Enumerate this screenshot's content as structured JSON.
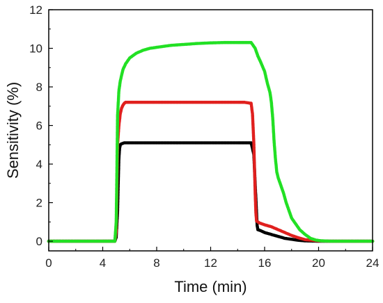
{
  "chart_data": {
    "type": "scatter",
    "title": "",
    "xlabel": "Time (min)",
    "ylabel": "Sensitivity (%)",
    "xlim": [
      0,
      24
    ],
    "ylim": [
      -0.5,
      12
    ],
    "xticks": [
      0,
      4,
      8,
      12,
      16,
      20,
      24
    ],
    "yticks": [
      0,
      2,
      4,
      6,
      8,
      10,
      12
    ],
    "grid": false,
    "legend": "none",
    "series": [
      {
        "color": "#000000",
        "x": [
          0,
          1,
          2,
          3,
          4,
          4.5,
          4.9,
          5.0,
          5.1,
          5.15,
          5.2,
          5.25,
          5.3,
          5.4,
          5.6,
          6,
          7,
          8,
          9,
          10,
          11,
          12,
          13,
          14,
          14.5,
          15.0,
          15.2,
          15.3,
          15.4,
          15.45,
          15.5,
          15.7,
          16,
          16.5,
          17,
          17.5,
          18,
          18.5,
          19,
          20,
          21,
          22,
          23,
          24
        ],
        "y": [
          0,
          0,
          0,
          0,
          0,
          0,
          0,
          0.2,
          1.5,
          3.0,
          4.3,
          4.8,
          5.0,
          5.05,
          5.1,
          5.1,
          5.1,
          5.1,
          5.1,
          5.1,
          5.1,
          5.1,
          5.1,
          5.1,
          5.1,
          5.1,
          4.5,
          3.0,
          1.5,
          0.8,
          0.6,
          0.55,
          0.45,
          0.35,
          0.25,
          0.15,
          0.1,
          0.05,
          0.02,
          0,
          0,
          0,
          0,
          0
        ]
      },
      {
        "color": "#e0201e",
        "x": [
          0,
          1,
          2,
          3,
          4,
          4.5,
          4.9,
          5.0,
          5.05,
          5.1,
          5.2,
          5.3,
          5.4,
          5.5,
          5.6,
          5.7,
          6,
          7,
          8,
          9,
          10,
          11,
          12,
          13,
          14,
          14.5,
          15.0,
          15.1,
          15.2,
          15.3,
          15.35,
          15.4,
          15.6,
          16,
          16.5,
          17,
          17.5,
          18,
          18.5,
          19,
          20,
          21,
          22,
          23,
          24
        ],
        "y": [
          0,
          0,
          0,
          0,
          0,
          0,
          0,
          0.5,
          2.5,
          5.0,
          6.0,
          6.6,
          6.9,
          7.05,
          7.15,
          7.2,
          7.2,
          7.2,
          7.2,
          7.2,
          7.2,
          7.2,
          7.2,
          7.2,
          7.2,
          7.2,
          7.15,
          6.6,
          5.1,
          2.5,
          1.5,
          1.05,
          0.95,
          0.85,
          0.75,
          0.6,
          0.45,
          0.3,
          0.18,
          0.08,
          0.02,
          0,
          0,
          0,
          0
        ]
      },
      {
        "color": "#22e024",
        "x": [
          0,
          1,
          2,
          3,
          4,
          4.5,
          4.9,
          5.0,
          5.05,
          5.1,
          5.2,
          5.3,
          5.5,
          5.7,
          6,
          6.5,
          7,
          7.5,
          8,
          9,
          10,
          11,
          12,
          13,
          14,
          14.5,
          15.0,
          15.3,
          15.5,
          15.7,
          16.0,
          16.2,
          16.4,
          16.5,
          16.6,
          16.7,
          16.8,
          16.9,
          17.0,
          17.2,
          17.4,
          17.6,
          17.8,
          18.0,
          18.3,
          18.6,
          19.0,
          19.4,
          19.8,
          20.2,
          21,
          22,
          23,
          24
        ],
        "y": [
          0,
          0,
          0,
          0,
          0,
          0,
          0,
          1.0,
          3.5,
          6.5,
          7.8,
          8.3,
          8.9,
          9.2,
          9.5,
          9.75,
          9.9,
          10.0,
          10.05,
          10.15,
          10.2,
          10.25,
          10.28,
          10.3,
          10.3,
          10.3,
          10.3,
          10.0,
          9.6,
          9.3,
          8.8,
          8.2,
          7.7,
          7.2,
          6.4,
          5.2,
          4.3,
          3.6,
          3.3,
          2.9,
          2.5,
          2.0,
          1.6,
          1.2,
          0.9,
          0.6,
          0.35,
          0.15,
          0.06,
          0.02,
          0,
          0,
          0,
          0
        ]
      }
    ]
  }
}
